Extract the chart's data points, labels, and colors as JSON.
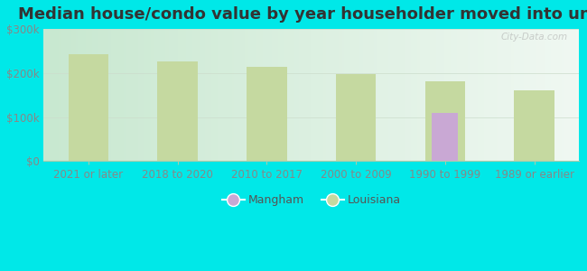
{
  "title": "Median house/condo value by year householder moved into unit",
  "categories": [
    "2021 or later",
    "2018 to 2020",
    "2010 to 2017",
    "2000 to 2009",
    "1990 to 1999",
    "1989 or earlier"
  ],
  "mangham_values": [
    null,
    null,
    null,
    null,
    110000,
    null
  ],
  "louisiana_values": [
    243000,
    227000,
    214000,
    197000,
    182000,
    161000
  ],
  "mangham_color": "#c9a8d4",
  "louisiana_color": "#c5d9a0",
  "background_color": "#00e8e8",
  "plot_bg_left": "#d4edd8",
  "plot_bg_right": "#f2f8f4",
  "ylim": [
    0,
    300000
  ],
  "yticks": [
    0,
    100000,
    200000,
    300000
  ],
  "ytick_labels": [
    "$0",
    "$100k",
    "$200k",
    "$300k"
  ],
  "tick_color": "#888888",
  "watermark": "City-Data.com",
  "bar_width": 0.45,
  "title_fontsize": 13,
  "tick_fontsize": 8.5,
  "legend_fontsize": 9,
  "legend_marker_size": 10
}
